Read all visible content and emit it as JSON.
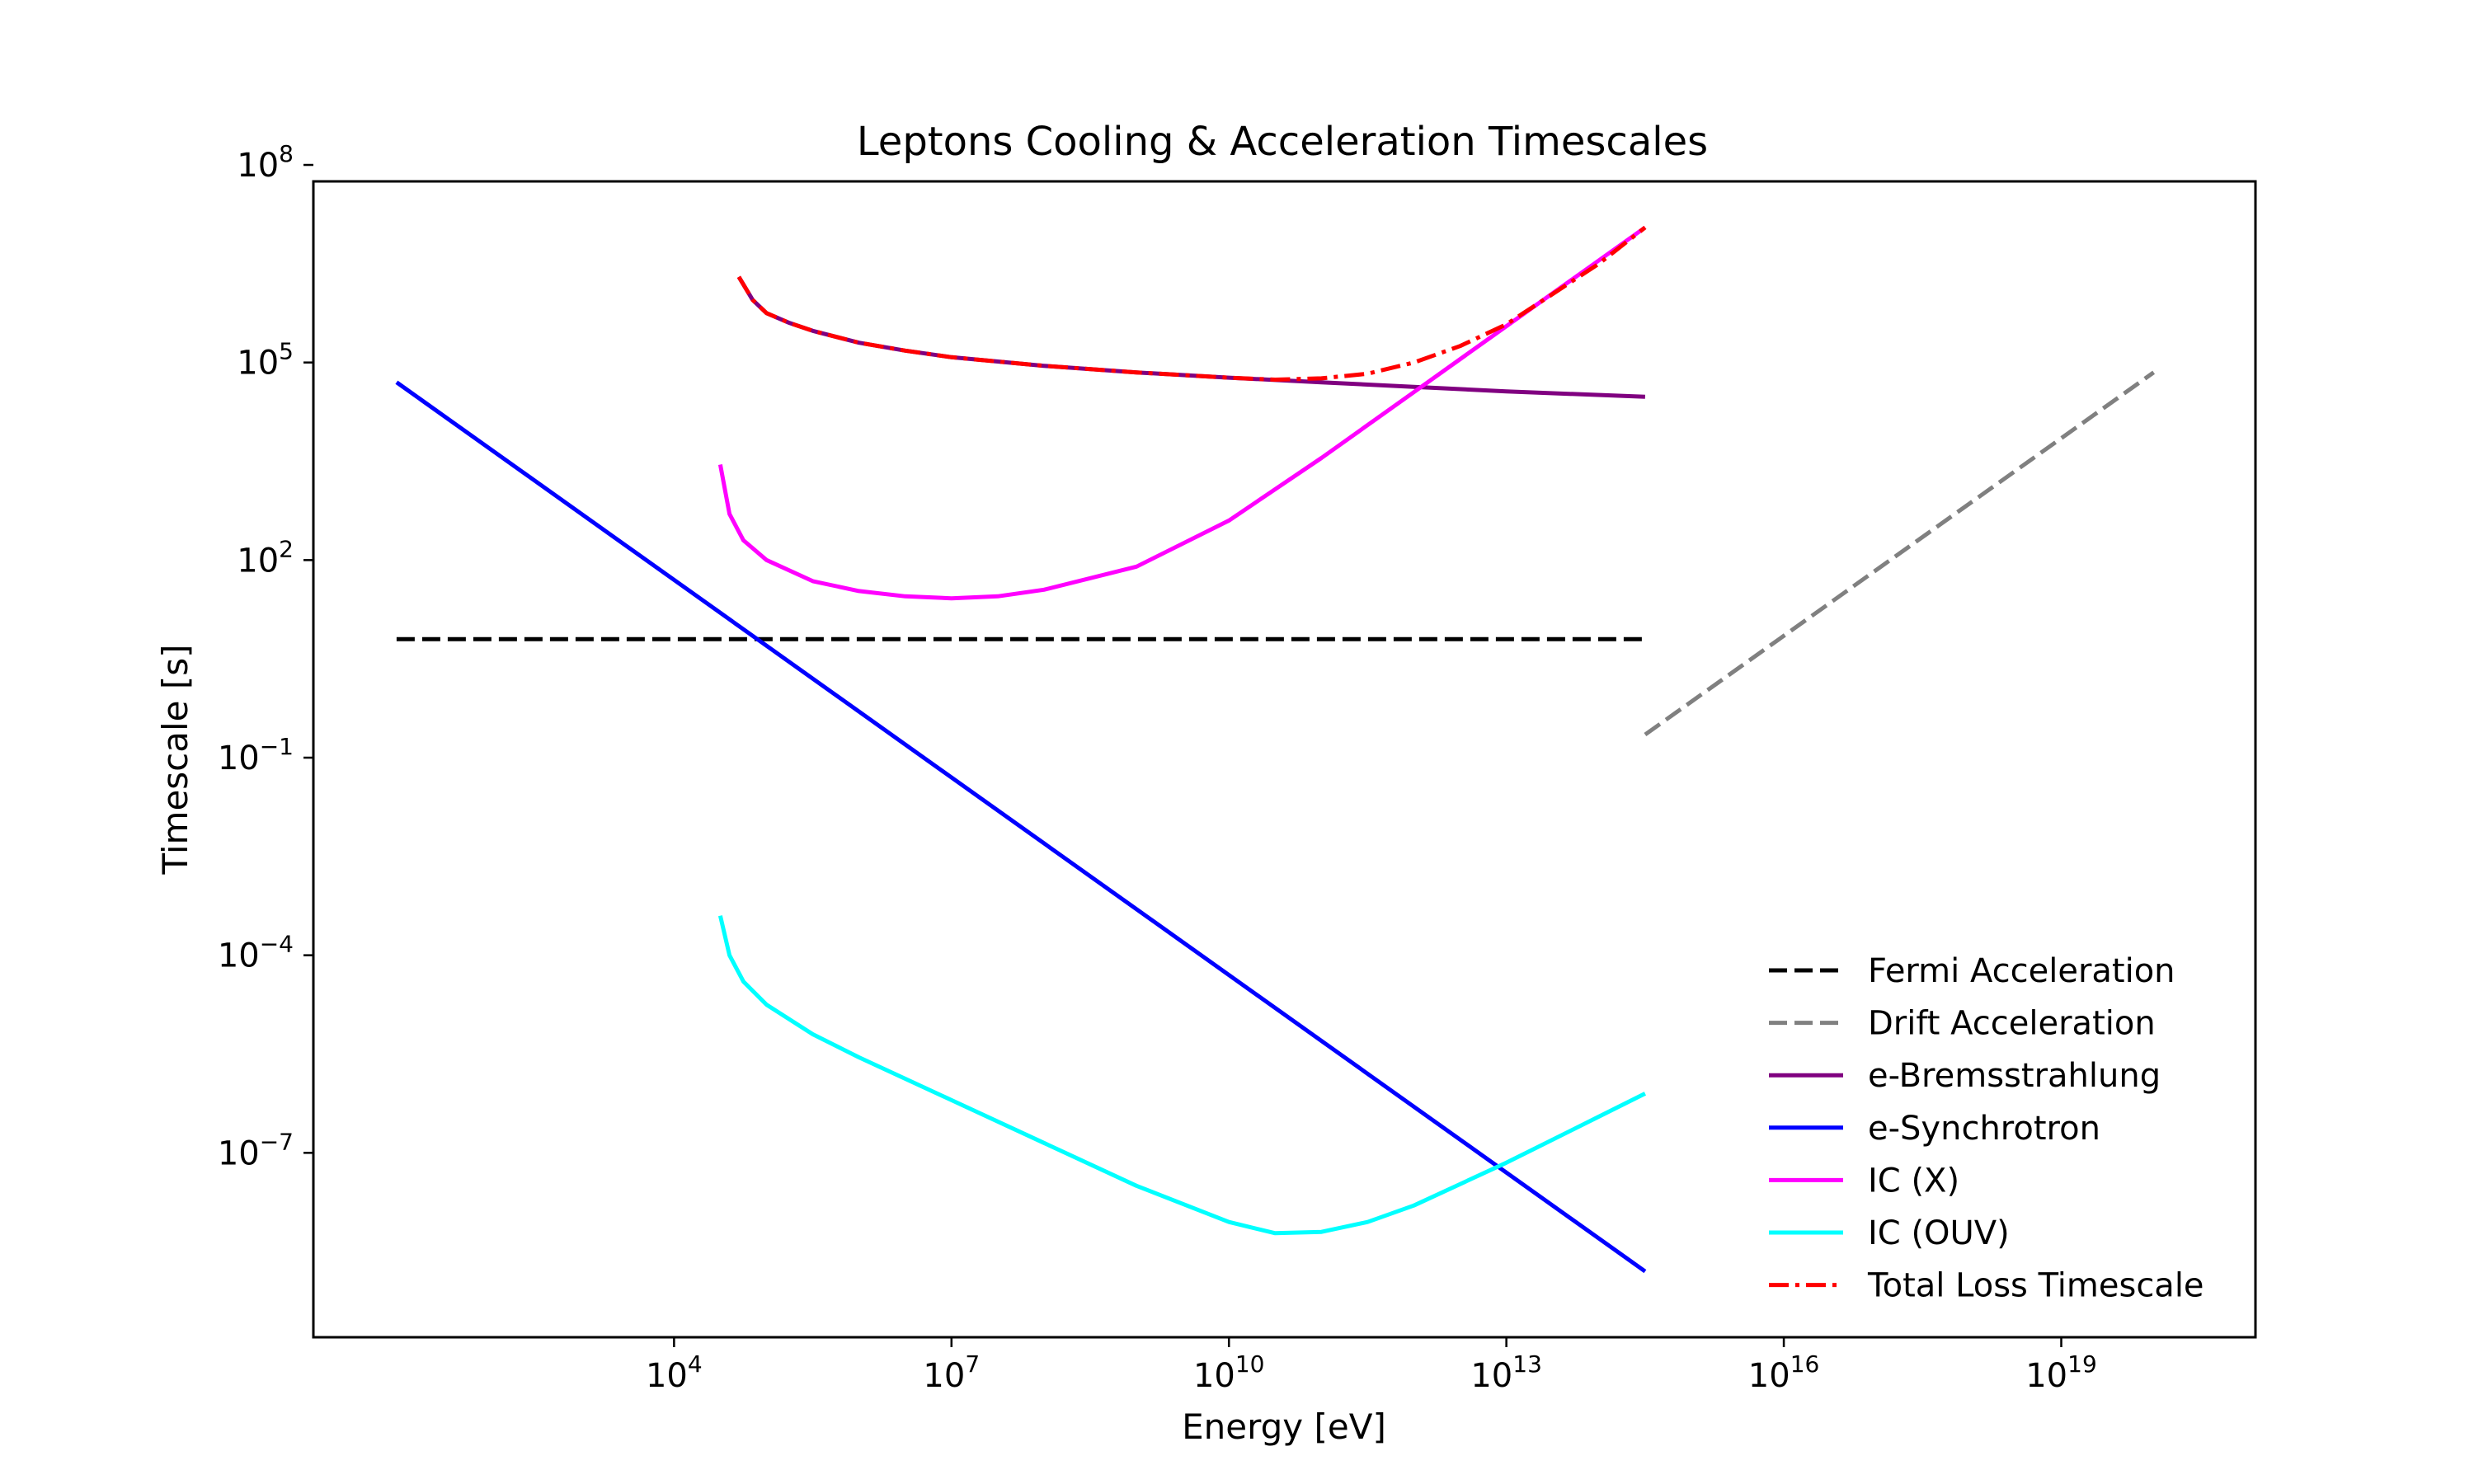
{
  "chart_data": {
    "type": "line",
    "title": "Leptons Cooling & Acceleration Timescales",
    "xlabel": "Energy [eV]",
    "ylabel": "Timescale [s]",
    "xscale": "log",
    "yscale": "log",
    "xlim_log10": [
      0.1,
      21.1
    ],
    "ylim_log10": [
      -9.8,
      7.75
    ],
    "xticks": [
      {
        "exp": 4,
        "label": "4"
      },
      {
        "exp": 7,
        "label": "7"
      },
      {
        "exp": 10,
        "label": "10"
      },
      {
        "exp": 13,
        "label": "13"
      },
      {
        "exp": 16,
        "label": "16"
      },
      {
        "exp": 19,
        "label": "19"
      }
    ],
    "yticks": [
      {
        "exp": 8,
        "label": "8"
      },
      {
        "exp": 5,
        "label": "5"
      },
      {
        "exp": 2,
        "label": "2"
      },
      {
        "exp": -1,
        "label": "−1"
      },
      {
        "exp": -4,
        "label": "−4"
      },
      {
        "exp": -7,
        "label": "−7"
      }
    ],
    "tick_base": "10",
    "legend_position": "lower-right",
    "grid": false,
    "series": [
      {
        "name": "Fermi Acceleration",
        "color": "#000000",
        "style": "dashed",
        "x_log10": [
          1,
          14.5
        ],
        "y_log10": [
          0.8,
          0.8
        ]
      },
      {
        "name": "Drift Acceleration",
        "color": "#808080",
        "style": "dashed",
        "x_log10": [
          14.5,
          20
        ],
        "y_log10": [
          -0.65,
          4.85
        ]
      },
      {
        "name": "e-Bremsstrahlung",
        "color": "#800080",
        "style": "solid",
        "x_log10": [
          4.7,
          4.85,
          5,
          5.25,
          5.5,
          6,
          6.5,
          7,
          8,
          9,
          10,
          11,
          12,
          13,
          14.5
        ],
        "y_log10": [
          6.3,
          5.95,
          5.75,
          5.6,
          5.48,
          5.3,
          5.18,
          5.08,
          4.95,
          4.85,
          4.77,
          4.7,
          4.63,
          4.56,
          4.48
        ]
      },
      {
        "name": "e-Synchrotron",
        "color": "#0000ff",
        "style": "solid",
        "x_log10": [
          1,
          14.5
        ],
        "y_log10": [
          4.7,
          -8.8
        ]
      },
      {
        "name": "IC (X)",
        "color": "#ff00ff",
        "style": "solid",
        "x_log10": [
          4.5,
          4.6,
          4.75,
          5,
          5.5,
          6,
          6.5,
          7,
          7.5,
          8,
          9,
          10,
          11,
          12,
          13,
          14,
          14.5
        ],
        "y_log10": [
          3.45,
          2.7,
          2.3,
          2,
          1.68,
          1.53,
          1.45,
          1.42,
          1.45,
          1.55,
          1.9,
          2.6,
          3.55,
          4.55,
          5.55,
          6.55,
          7.05
        ]
      },
      {
        "name": "IC (OUV)",
        "color": "#00ffff",
        "style": "solid",
        "x_log10": [
          4.5,
          4.6,
          4.75,
          5,
          5.5,
          6,
          7,
          8,
          9,
          10,
          10.5,
          11,
          11.5,
          12,
          13,
          14,
          14.5
        ],
        "y_log10": [
          -3.4,
          -4,
          -4.4,
          -4.75,
          -5.2,
          -5.55,
          -6.2,
          -6.85,
          -7.5,
          -8.05,
          -8.22,
          -8.2,
          -8.05,
          -7.8,
          -7.15,
          -6.45,
          -6.1
        ]
      },
      {
        "name": "Total Loss Timescale",
        "color": "#ff0000",
        "style": "dashdot",
        "x_log10": [
          4.7,
          4.85,
          5,
          5.25,
          5.5,
          6,
          6.5,
          7,
          8,
          9,
          10,
          10.5,
          11,
          11.5,
          12,
          12.5,
          13,
          14,
          14.5
        ],
        "y_log10": [
          6.3,
          5.95,
          5.75,
          5.6,
          5.48,
          5.3,
          5.18,
          5.08,
          4.95,
          4.85,
          4.77,
          4.74,
          4.76,
          4.83,
          5,
          5.25,
          5.58,
          6.5,
          7.05
        ]
      }
    ]
  }
}
